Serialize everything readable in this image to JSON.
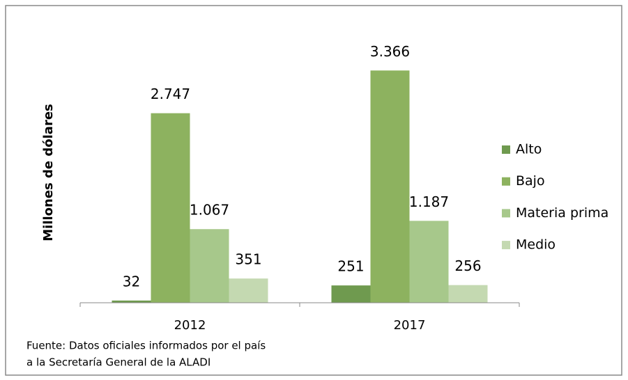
{
  "chart_data": {
    "type": "bar",
    "y_label": "Millones de dólares",
    "categories": [
      "2012",
      "2017"
    ],
    "series": [
      {
        "name": "Alto",
        "color": "#6f9a4f",
        "values": [
          32,
          251
        ],
        "value_labels": [
          "32",
          "251"
        ]
      },
      {
        "name": "Bajo",
        "color": "#8db25f",
        "values": [
          2747,
          3366
        ],
        "value_labels": [
          "2.747",
          "3.366"
        ]
      },
      {
        "name": "Materia prima",
        "color": "#a7c88b",
        "values": [
          1067,
          1187
        ],
        "value_labels": [
          "1.067",
          "1.187"
        ]
      },
      {
        "name": "Medio",
        "color": "#c4d9b1",
        "values": [
          351,
          256
        ],
        "value_labels": [
          "351",
          "256"
        ]
      }
    ],
    "ylim": [
      0,
      3500
    ],
    "legend": "right",
    "source": [
      "Fuente: Datos oficiales informados por el país",
      "a la Secretaría General de la ALADI"
    ]
  }
}
